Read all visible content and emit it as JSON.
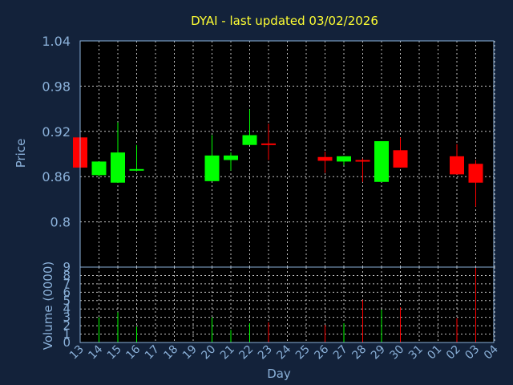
{
  "chart_data": {
    "type": "candlestick",
    "title": "DYAI - last updated 03/02/2026",
    "xlabel": "Day",
    "price_ylabel": "Price",
    "volume_ylabel": "Volume (0000)",
    "x_ticks": [
      "13",
      "14",
      "15",
      "16",
      "17",
      "18",
      "19",
      "20",
      "21",
      "22",
      "23",
      "24",
      "25",
      "26",
      "27",
      "28",
      "29",
      "30",
      "31",
      "01",
      "02",
      "03",
      "04"
    ],
    "price_ticks": [
      "0.8",
      "0.86",
      "0.92",
      "0.98",
      "1.04"
    ],
    "price_ylim": [
      0.74,
      1.04
    ],
    "volume_ticks": [
      "0",
      "1",
      "2",
      "3",
      "4",
      "5",
      "6",
      "7",
      "8",
      "9"
    ],
    "volume_ylim": [
      0,
      9
    ],
    "grid": true,
    "colors": {
      "up": "#00ff00",
      "down": "#ff0000",
      "background": "#13223a",
      "plot": "#000000",
      "grid": "#c0c0c0",
      "axis": "#8ab0d8",
      "title": "#ffff33"
    },
    "candles": [
      {
        "day": "13",
        "open": 0.912,
        "close": 0.872,
        "high": 0.912,
        "low": 0.872,
        "volume": 0
      },
      {
        "day": "14",
        "open": 0.862,
        "close": 0.88,
        "high": 0.88,
        "low": 0.86,
        "volume": 3.0
      },
      {
        "day": "15",
        "open": 0.852,
        "close": 0.892,
        "high": 0.932,
        "low": 0.852,
        "volume": 3.6
      },
      {
        "day": "16",
        "open": 0.869,
        "close": 0.87,
        "high": 0.902,
        "low": 0.867,
        "volume": 1.9
      },
      {
        "day": "20",
        "open": 0.854,
        "close": 0.888,
        "high": 0.915,
        "low": 0.854,
        "volume": 3.0
      },
      {
        "day": "21",
        "open": 0.882,
        "close": 0.888,
        "high": 0.892,
        "low": 0.868,
        "volume": 1.5
      },
      {
        "day": "22",
        "open": 0.902,
        "close": 0.915,
        "high": 0.949,
        "low": 0.902,
        "volume": 2.3
      },
      {
        "day": "23",
        "open": 0.904,
        "close": 0.903,
        "high": 0.93,
        "low": 0.882,
        "volume": 2.4
      },
      {
        "day": "26",
        "open": 0.886,
        "close": 0.881,
        "high": 0.893,
        "low": 0.865,
        "volume": 2.1
      },
      {
        "day": "27",
        "open": 0.88,
        "close": 0.887,
        "high": 0.887,
        "low": 0.875,
        "volume": 2.3
      },
      {
        "day": "28",
        "open": 0.882,
        "close": 0.881,
        "high": 0.884,
        "low": 0.853,
        "volume": 5.1
      },
      {
        "day": "29",
        "open": 0.853,
        "close": 0.907,
        "high": 0.907,
        "low": 0.853,
        "volume": 3.9
      },
      {
        "day": "30",
        "open": 0.895,
        "close": 0.872,
        "high": 0.912,
        "low": 0.872,
        "volume": 4.2
      },
      {
        "day": "02",
        "open": 0.887,
        "close": 0.863,
        "high": 0.903,
        "low": 0.863,
        "volume": 2.9
      },
      {
        "day": "03",
        "open": 0.877,
        "close": 0.852,
        "high": 0.882,
        "low": 0.82,
        "volume": 8.9
      }
    ]
  }
}
